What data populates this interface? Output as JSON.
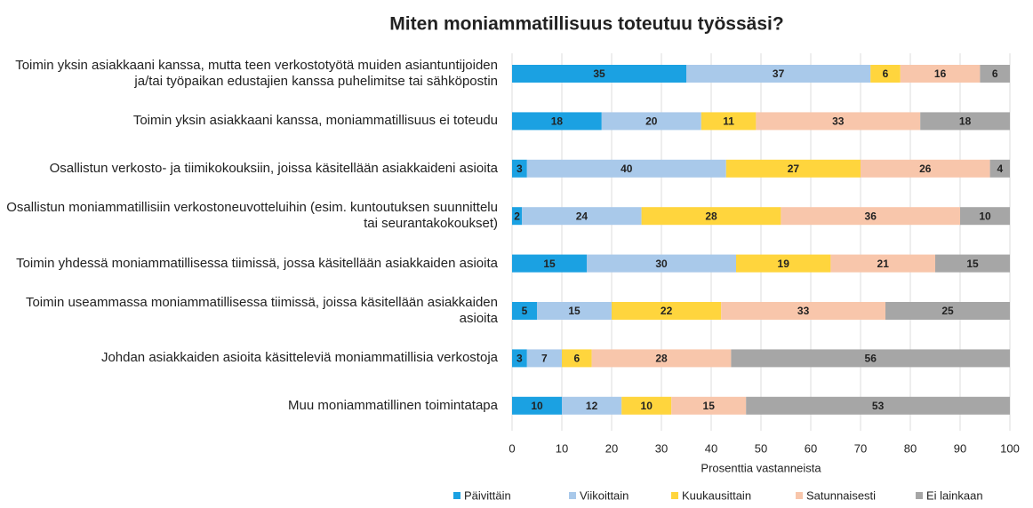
{
  "chart_data": {
    "type": "stacked_barh",
    "title": "Miten moniammatillisuus toteutuu työssäsi?",
    "categories": [
      "Toimin yksin asiakkaani kanssa, mutta teen verkostotyötä muiden asiantuntijoiden ja/tai työpaikan edustajien kanssa puhelimitse tai sähköpostin",
      "Toimin yksin asiakkaani kanssa, moniammatillisuus ei toteudu",
      "Osallistun verkosto- ja tiimikokouksiin, joissa käsitellään asiakkaideni asioita",
      "Osallistun moniammatillisiin verkostoneuvotteluihin (esim. kuntoutuksen suunnittelu tai seurantakokoukset)",
      "Toimin yhdessä moniammatillisessa tiimissä, jossa käsitellään asiakkaiden asioita",
      "Toimin useammassa moniammatillisessa tiimissä, joissa käsitellään asiakkaiden asioita",
      "Johdan asiakkaiden asioita käsitteleviä moniammatillisia verkostoja",
      "Muu moniammatillinen toimintatapa"
    ],
    "series": [
      {
        "name": "Päivittäin",
        "color": "#1ba1e2",
        "values": [
          35,
          18,
          3,
          2,
          15,
          5,
          3,
          10
        ]
      },
      {
        "name": "Viikoittain",
        "color": "#a9c9ea",
        "values": [
          37,
          20,
          40,
          24,
          30,
          15,
          7,
          12
        ]
      },
      {
        "name": "Kuukausittain",
        "color": "#ffd53d",
        "values": [
          6,
          11,
          27,
          28,
          19,
          22,
          6,
          10
        ]
      },
      {
        "name": "Satunnaisesti",
        "color": "#f8c6ab",
        "values": [
          16,
          33,
          26,
          36,
          21,
          33,
          28,
          15
        ]
      },
      {
        "name": "Ei lainkaan",
        "color": "#a6a6a6",
        "values": [
          6,
          18,
          4,
          10,
          15,
          25,
          56,
          53
        ]
      }
    ],
    "xlabel": "Prosenttia vastanneista",
    "xlim": [
      0,
      100
    ],
    "xticks": [
      0,
      10,
      20,
      30,
      40,
      50,
      60,
      70,
      80,
      90,
      100
    ],
    "grid": true
  }
}
